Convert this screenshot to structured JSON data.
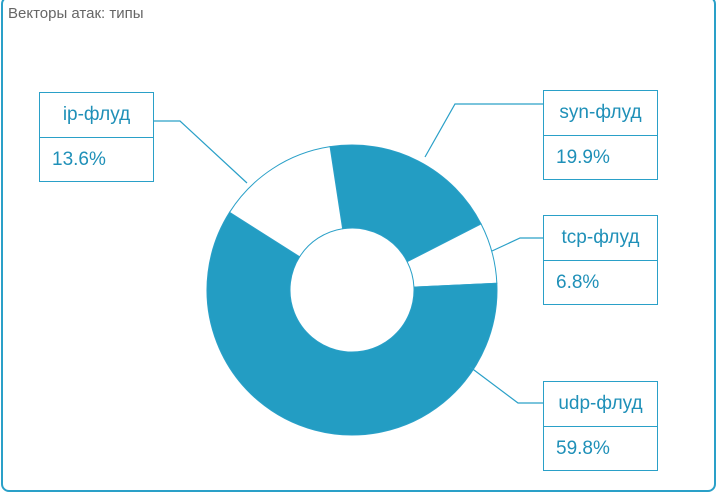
{
  "chart_data": {
    "type": "pie",
    "title": "Векторы атак: типы",
    "donut": true,
    "slices": [
      {
        "label": "syn-флуд",
        "value": 19.9,
        "display": "19.9%",
        "color": "#239dc3"
      },
      {
        "label": "tcp-флуд",
        "value": 6.8,
        "display": "6.8%",
        "color": "#ffffff"
      },
      {
        "label": "udp-флуд",
        "value": 59.8,
        "display": "59.8%",
        "color": "#239dc3"
      },
      {
        "label": "ip-флуд",
        "value": 13.6,
        "display": "13.6%",
        "color": "#ffffff"
      }
    ],
    "start_angle_deg": -8.7,
    "outline_color": "#2aa0c8"
  }
}
